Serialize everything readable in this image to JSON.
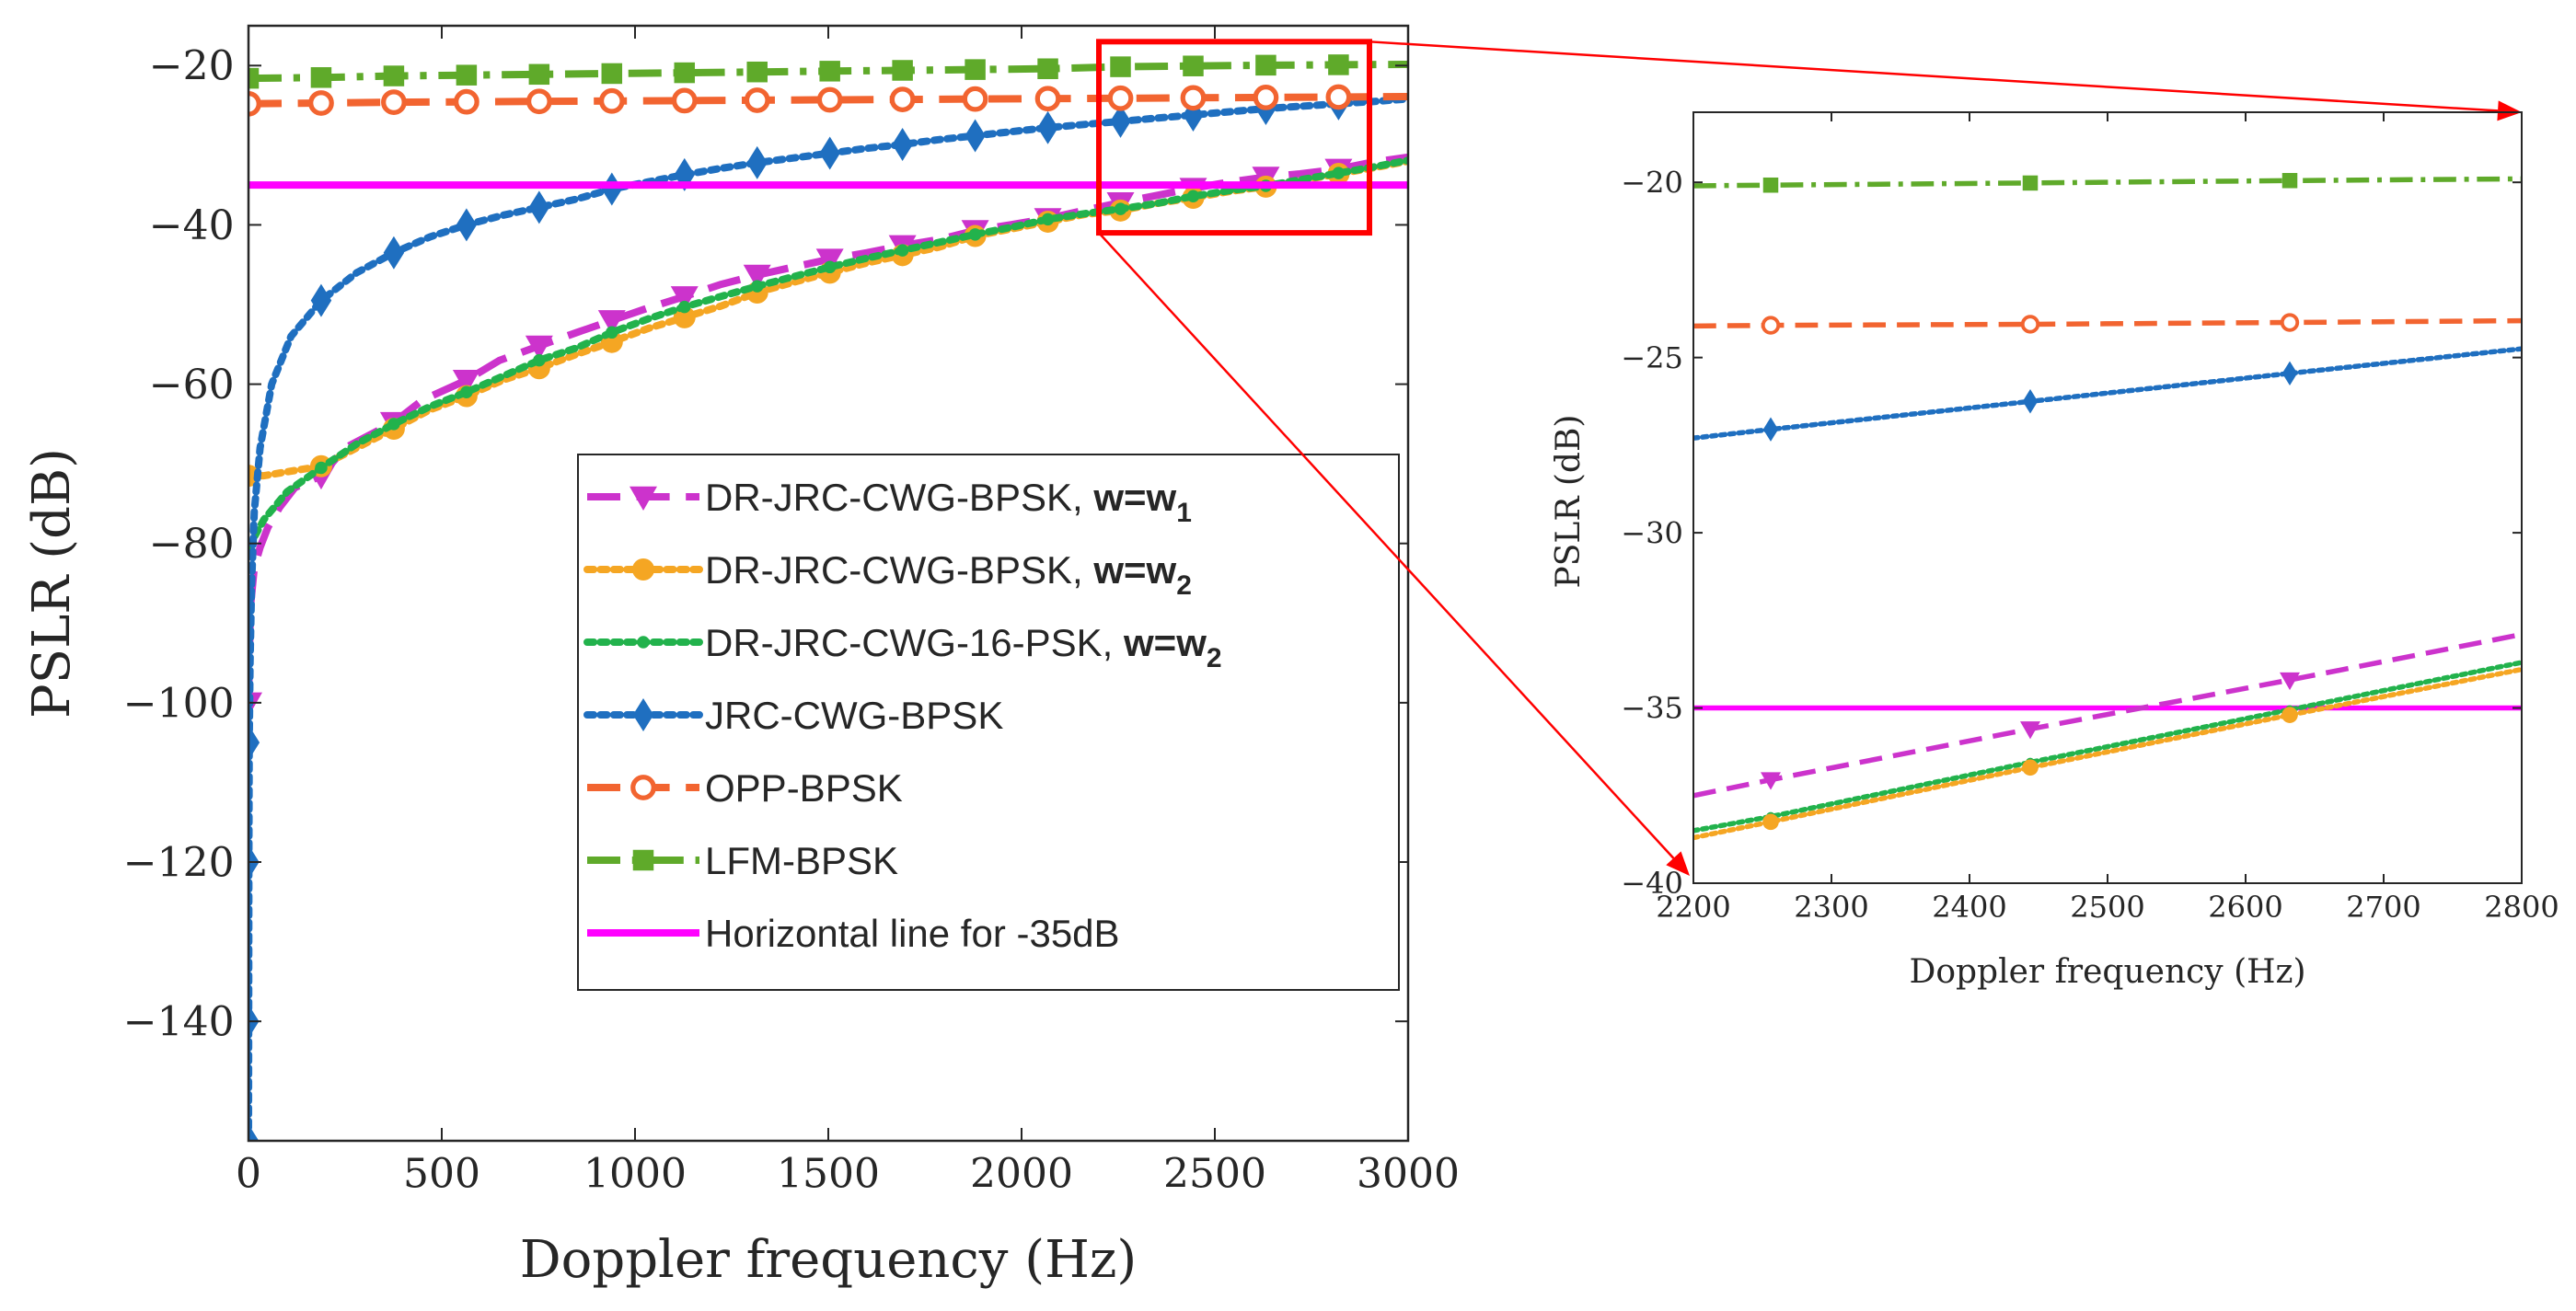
{
  "chart_data": [
    {
      "id": "main",
      "type": "line",
      "xlabel": "Doppler frequency (Hz)",
      "ylabel": "PSLR (dB)",
      "xlim": [
        0,
        3000
      ],
      "ylim": [
        -155,
        -15
      ],
      "xticks": [
        0,
        500,
        1000,
        1500,
        2000,
        2500,
        3000
      ],
      "yticks": [
        -140,
        -120,
        -100,
        -80,
        -60,
        -40,
        -20
      ],
      "xtick_labels": [
        "0",
        "500",
        "1000",
        "1500",
        "2000",
        "2500",
        "3000"
      ],
      "ytick_labels": [
        "−140",
        "−120",
        "−100",
        "−80",
        "−60",
        "−40",
        "−20"
      ],
      "legend": {
        "location": "lower-right",
        "entries": [
          {
            "series": "DR-JRC-CWG-BPSK w1",
            "label": "DR-JRC-CWG-BPSK, ",
            "bold": "w=w",
            "sub": "1"
          },
          {
            "series": "DR-JRC-CWG-BPSK w2",
            "label": "DR-JRC-CWG-BPSK, ",
            "bold": "w=w",
            "sub": "2"
          },
          {
            "series": "DR-JRC-CWG-16-PSK w2",
            "label": "DR-JRC-CWG-16-PSK, ",
            "bold": "w=w",
            "sub": "2"
          },
          {
            "series": "JRC-CWG-BPSK",
            "label": "JRC-CWG-BPSK",
            "bold": "",
            "sub": ""
          },
          {
            "series": "OPP-BPSK",
            "label": "OPP-BPSK",
            "bold": "",
            "sub": ""
          },
          {
            "series": "LFM-BPSK",
            "label": "LFM-BPSK",
            "bold": "",
            "sub": ""
          },
          {
            "series": "Horizontal line for -35dB",
            "label": "Horizontal line for -35dB",
            "bold": "",
            "sub": ""
          }
        ]
      },
      "zoom_box": {
        "x": [
          2200,
          2900
        ],
        "y": [
          -41,
          -17
        ]
      },
      "series": [
        {
          "name": "DR-JRC-CWG-BPSK w1",
          "color": "#CC33CC",
          "dash": "dashed",
          "marker": "triangle-down",
          "x": [
            0,
            5,
            15,
            30,
            50,
            80,
            120,
            188,
            250,
            376,
            450,
            564,
            650,
            752,
            850,
            940,
            1030,
            1128,
            1220,
            1316,
            1410,
            1504,
            1600,
            1692,
            1790,
            1880,
            1970,
            2068,
            2160,
            2256,
            2350,
            2444,
            2540,
            2632,
            2720,
            2820,
            2900,
            3000
          ],
          "y": [
            -100,
            -88,
            -83,
            -80.5,
            -78,
            -75.5,
            -73,
            -71.5,
            -68,
            -64.8,
            -62,
            -59.5,
            -57,
            -55.2,
            -53.5,
            -52,
            -50.5,
            -49,
            -47.5,
            -46.3,
            -45.3,
            -44.3,
            -43.5,
            -42.6,
            -41.8,
            -40.7,
            -40,
            -39.2,
            -38.2,
            -37.2,
            -36.3,
            -35.4,
            -34.6,
            -34,
            -33.6,
            -33,
            -32.2,
            -31.5
          ]
        },
        {
          "name": "DR-JRC-CWG-BPSK w2",
          "color": "#F5A623",
          "dash": "dotted",
          "marker": "circle",
          "x": [
            0,
            40,
            100,
            188,
            280,
            376,
            470,
            564,
            658,
            752,
            846,
            940,
            1034,
            1128,
            1222,
            1316,
            1410,
            1504,
            1598,
            1692,
            1786,
            1880,
            1974,
            2068,
            2162,
            2256,
            2350,
            2444,
            2538,
            2632,
            2726,
            2820,
            2914,
            3000
          ],
          "y": [
            -71.5,
            -71.5,
            -71,
            -70.3,
            -68,
            -65.6,
            -63.2,
            -61.5,
            -59.5,
            -58,
            -56.3,
            -54.7,
            -53,
            -51.6,
            -50.2,
            -48.5,
            -47.2,
            -46,
            -44.8,
            -43.8,
            -42.8,
            -41.4,
            -40.5,
            -39.6,
            -38.7,
            -38.2,
            -37.3,
            -36.6,
            -35.8,
            -35.2,
            -34.4,
            -33.6,
            -32.8,
            -32
          ]
        },
        {
          "name": "DR-JRC-CWG-16-PSK w2",
          "color": "#22B24C",
          "dash": "dotted",
          "marker": "dot",
          "x": [
            0,
            40,
            100,
            188,
            280,
            376,
            470,
            564,
            658,
            752,
            846,
            940,
            1034,
            1128,
            1222,
            1316,
            1410,
            1504,
            1598,
            1692,
            1786,
            1880,
            1974,
            2068,
            2162,
            2256,
            2350,
            2444,
            2538,
            2632,
            2726,
            2820,
            2914,
            3000
          ],
          "y": [
            -80.5,
            -77,
            -73.5,
            -70.5,
            -67.5,
            -65,
            -62.8,
            -61,
            -59,
            -57,
            -55.5,
            -53.5,
            -51.8,
            -50.3,
            -49,
            -47.7,
            -46.5,
            -45.3,
            -44.2,
            -43.2,
            -42.2,
            -41.2,
            -40.3,
            -39.3,
            -38.6,
            -38,
            -37.3,
            -36.4,
            -35.7,
            -35.1,
            -34.3,
            -33.5,
            -32.7,
            -31.9
          ]
        },
        {
          "name": "JRC-CWG-BPSK",
          "color": "#1F6FC0",
          "dash": "dotted",
          "marker": "diamond",
          "x": [
            0,
            0.5,
            1,
            2,
            4,
            8,
            15,
            30,
            60,
            110,
            188,
            280,
            376,
            470,
            564,
            658,
            752,
            846,
            940,
            1034,
            1128,
            1222,
            1316,
            1410,
            1504,
            1598,
            1692,
            1786,
            1880,
            1974,
            2068,
            2162,
            2256,
            2350,
            2444,
            2538,
            2632,
            2726,
            2820,
            2914,
            3000
          ],
          "y": [
            -155,
            -140,
            -120,
            -105,
            -95,
            -85,
            -76,
            -68,
            -60,
            -54,
            -49.5,
            -46,
            -43.5,
            -41.5,
            -40,
            -38.8,
            -37.8,
            -36.8,
            -35.5,
            -34.6,
            -33.7,
            -32.9,
            -32.2,
            -31.6,
            -31,
            -30.4,
            -29.9,
            -29.3,
            -28.8,
            -28.3,
            -27.8,
            -27.4,
            -27,
            -26.6,
            -26.2,
            -25.8,
            -25.4,
            -25.1,
            -24.8,
            -24.5,
            -24.2
          ]
        },
        {
          "name": "OPP-BPSK",
          "color": "#F26430",
          "dash": "dashed",
          "marker": "circle-open",
          "x": [
            0,
            188,
            376,
            564,
            752,
            940,
            1128,
            1316,
            1504,
            1692,
            1880,
            2068,
            2256,
            2444,
            2632,
            2820,
            3000
          ],
          "y": [
            -24.8,
            -24.7,
            -24.6,
            -24.55,
            -24.5,
            -24.45,
            -24.4,
            -24.35,
            -24.3,
            -24.25,
            -24.2,
            -24.15,
            -24.1,
            -24.05,
            -24,
            -23.95,
            -23.9
          ]
        },
        {
          "name": "LFM-BPSK",
          "color": "#5FAA2A",
          "dash": "dashdot",
          "marker": "square",
          "x": [
            0,
            188,
            376,
            564,
            752,
            940,
            1128,
            1316,
            1504,
            1692,
            1880,
            2068,
            2256,
            2444,
            2632,
            2820,
            3000
          ],
          "y": [
            -21.6,
            -21.5,
            -21.3,
            -21.2,
            -21.1,
            -21,
            -20.9,
            -20.8,
            -20.7,
            -20.6,
            -20.5,
            -20.4,
            -20.15,
            -20.05,
            -19.95,
            -19.9,
            -19.85
          ]
        },
        {
          "name": "Horizontal line for -35dB",
          "color": "#FF00FF",
          "dash": "solid",
          "marker": "none",
          "x": [
            0,
            3000
          ],
          "y": [
            -35,
            -35
          ]
        }
      ]
    },
    {
      "id": "inset",
      "type": "line",
      "xlabel": "Doppler frequency (Hz)",
      "ylabel": "PSLR (dB)",
      "xlim": [
        2200,
        2800
      ],
      "ylim": [
        -40,
        -18
      ],
      "xticks": [
        2200,
        2300,
        2400,
        2500,
        2600,
        2700,
        2800
      ],
      "yticks": [
        -40,
        -35,
        -30,
        -25,
        -20
      ],
      "xtick_labels": [
        "2200",
        "2300",
        "2400",
        "2500",
        "2600",
        "2700",
        "2800"
      ],
      "ytick_labels": [
        "−40",
        "−35",
        "−30",
        "−25",
        "−20"
      ],
      "series": [
        {
          "name": "LFM-BPSK",
          "color": "#5FAA2A",
          "dash": "dashdot",
          "marker": "square",
          "x": [
            2200,
            2256,
            2444,
            2632,
            2800
          ],
          "y": [
            -20.1,
            -20.08,
            -20.02,
            -19.95,
            -19.9
          ]
        },
        {
          "name": "OPP-BPSK",
          "color": "#F26430",
          "dash": "dashed",
          "marker": "circle-open",
          "x": [
            2200,
            2256,
            2444,
            2632,
            2800
          ],
          "y": [
            -24.1,
            -24.08,
            -24.05,
            -24.0,
            -23.95
          ]
        },
        {
          "name": "JRC-CWG-BPSK",
          "color": "#1F6FC0",
          "dash": "dotted",
          "marker": "diamond",
          "x": [
            2200,
            2256,
            2444,
            2632,
            2800
          ],
          "y": [
            -27.3,
            -27.05,
            -26.25,
            -25.45,
            -24.75
          ]
        },
        {
          "name": "Horizontal line for -35dB",
          "color": "#FF00FF",
          "dash": "solid",
          "marker": "none",
          "x": [
            2200,
            2800
          ],
          "y": [
            -35,
            -35
          ]
        },
        {
          "name": "DR-JRC-CWG-BPSK w1",
          "color": "#CC33CC",
          "dash": "dashed",
          "marker": "triangle-down",
          "x": [
            2200,
            2256,
            2444,
            2632,
            2800
          ],
          "y": [
            -37.5,
            -37.05,
            -35.6,
            -34.2,
            -32.9
          ]
        },
        {
          "name": "DR-JRC-CWG-16-PSK w2",
          "color": "#22B24C",
          "dash": "dotted",
          "marker": "dot",
          "x": [
            2200,
            2256,
            2444,
            2632,
            2800
          ],
          "y": [
            -38.5,
            -38.1,
            -36.55,
            -35.05,
            -33.7
          ]
        },
        {
          "name": "DR-JRC-CWG-BPSK w2",
          "color": "#F5A623",
          "dash": "dotted",
          "marker": "circle",
          "x": [
            2200,
            2256,
            2444,
            2632,
            2800
          ],
          "y": [
            -38.7,
            -38.25,
            -36.7,
            -35.2,
            -33.9
          ]
        }
      ]
    }
  ]
}
